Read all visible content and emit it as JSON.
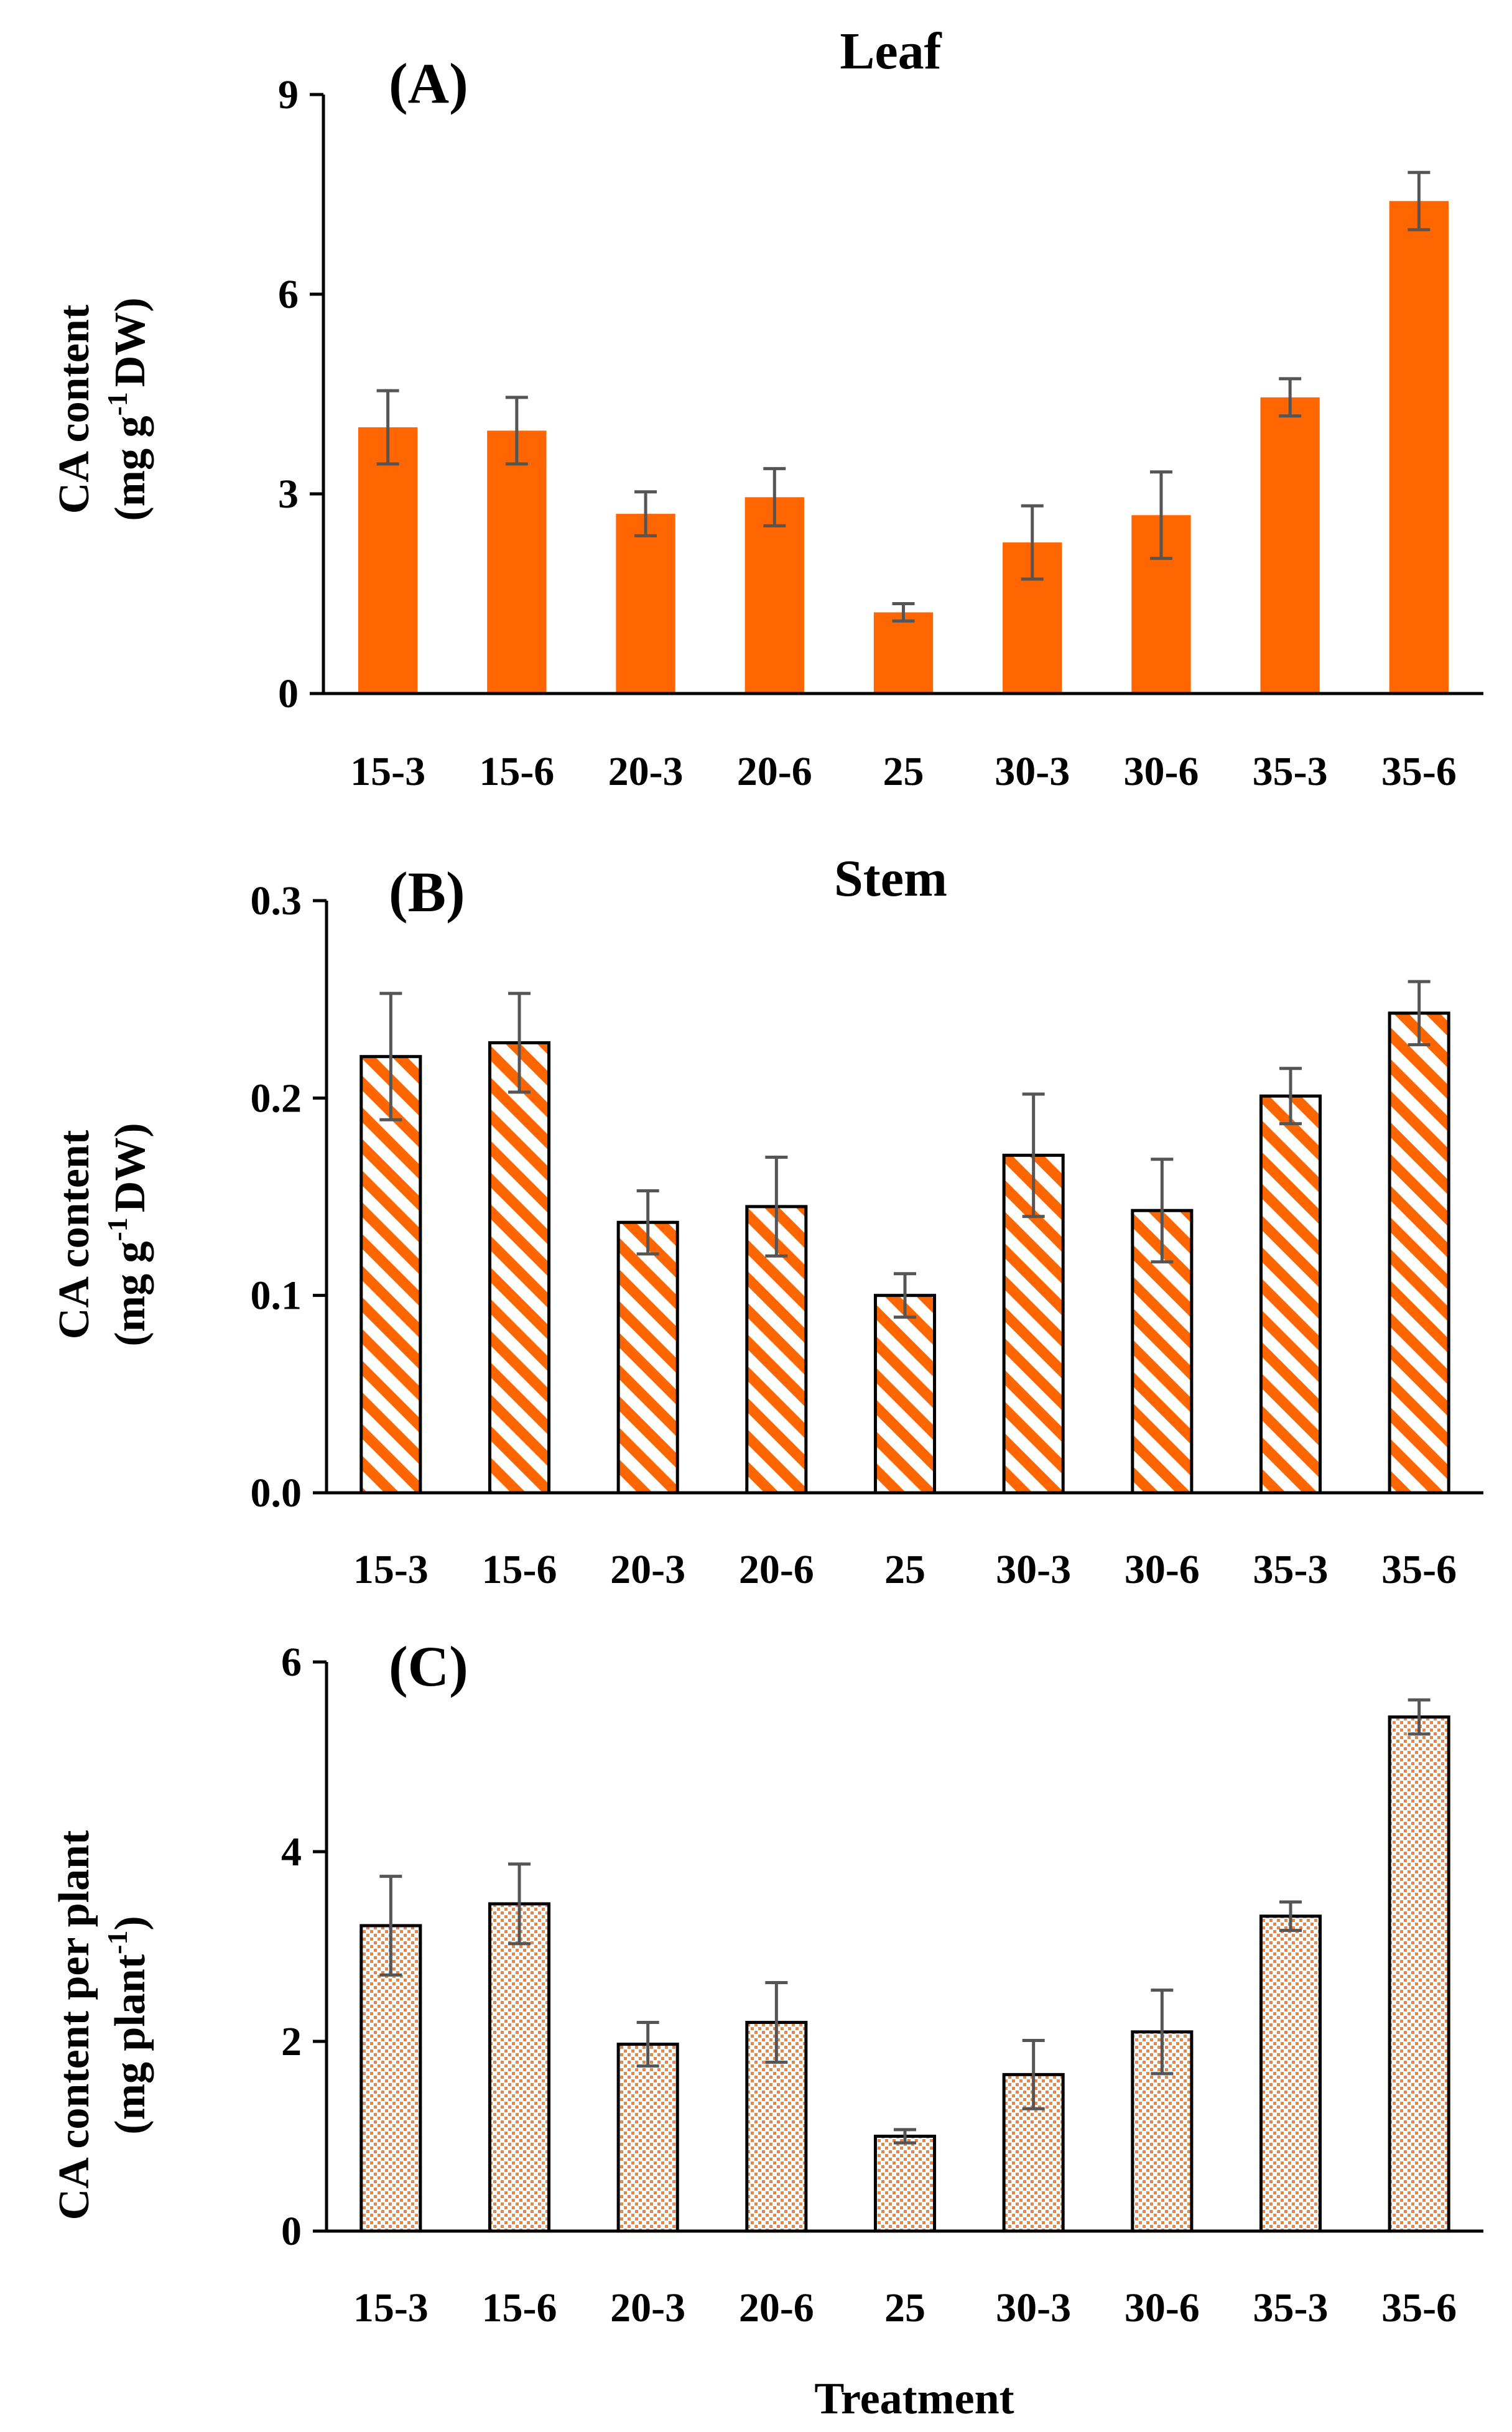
{
  "chart_data": [
    {
      "type": "bar",
      "panel_label": "(A)",
      "title": "Leaf",
      "ylabel_line1": "CA content",
      "ylabel_line2_pre": "(mg g",
      "ylabel_line2_sup": "-1",
      "ylabel_line2_post": "DW)",
      "xlabel": "",
      "ylim": [
        0,
        9
      ],
      "yticks": [
        0,
        3,
        6,
        9
      ],
      "ytick_labels": [
        "0",
        "3",
        "6",
        "9"
      ],
      "categories": [
        "15-3",
        "15-6",
        "20-3",
        "20-6",
        "25",
        "30-3",
        "30-6",
        "35-3",
        "35-6"
      ],
      "values": [
        4.0,
        3.95,
        2.7,
        2.95,
        1.22,
        2.27,
        2.68,
        4.45,
        7.4
      ],
      "errors": [
        0.55,
        0.5,
        0.33,
        0.43,
        0.13,
        0.55,
        0.65,
        0.28,
        0.43
      ],
      "fill": "solid",
      "color": "#FF6600",
      "error_color": "#555555",
      "grid": false
    },
    {
      "type": "bar",
      "panel_label": "(B)",
      "title": "Stem",
      "ylabel_line1": "CA content",
      "ylabel_line2_pre": "(mg g",
      "ylabel_line2_sup": "-1",
      "ylabel_line2_post": "DW)",
      "xlabel": "",
      "ylim": [
        0,
        0.3
      ],
      "yticks": [
        0,
        0.1,
        0.2,
        0.3
      ],
      "ytick_labels": [
        "0.0",
        "0.1",
        "0.2",
        "0.3"
      ],
      "categories": [
        "15-3",
        "15-6",
        "20-3",
        "20-6",
        "25",
        "30-3",
        "30-6",
        "35-3",
        "35-6"
      ],
      "values": [
        0.221,
        0.228,
        0.137,
        0.145,
        0.1,
        0.171,
        0.143,
        0.201,
        0.243
      ],
      "errors": [
        0.032,
        0.025,
        0.016,
        0.025,
        0.011,
        0.031,
        0.026,
        0.014,
        0.016
      ],
      "fill": "diagonal",
      "color": "#FF6600",
      "error_color": "#555555",
      "grid": false
    },
    {
      "type": "bar",
      "panel_label": "(C)",
      "title": "",
      "ylabel_line1": "CA content per plant",
      "ylabel_line2_pre": "(mg plant",
      "ylabel_line2_sup": "-1",
      "ylabel_line2_post": ")",
      "xlabel": "Treatment",
      "ylim": [
        0,
        6
      ],
      "yticks": [
        0,
        2,
        4,
        6
      ],
      "ytick_labels": [
        "0",
        "2",
        "4",
        "6"
      ],
      "categories": [
        "15-3",
        "15-6",
        "20-3",
        "20-6",
        "25",
        "30-3",
        "30-6",
        "35-3",
        "35-6"
      ],
      "values": [
        3.22,
        3.45,
        1.97,
        2.2,
        1.0,
        1.65,
        2.1,
        3.32,
        5.42
      ],
      "errors": [
        0.52,
        0.42,
        0.23,
        0.42,
        0.07,
        0.36,
        0.44,
        0.15,
        0.18
      ],
      "fill": "dotted",
      "color": "#FF6600",
      "error_color": "#555555",
      "grid": false
    }
  ]
}
